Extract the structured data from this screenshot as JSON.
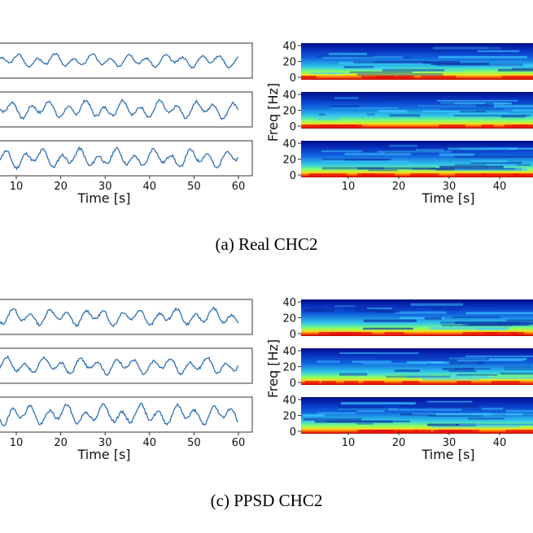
{
  "panels": [
    {
      "caption": "(a) Real CHC2",
      "time_axis": {
        "label": "Time [s]",
        "ticks": [
          "10",
          "20",
          "30",
          "40",
          "50",
          "60"
        ]
      },
      "spec_axis": {
        "xlabel": "Time [s]",
        "xticks": [
          "10",
          "20",
          "30",
          "40"
        ],
        "ylabel": "Freq [Hz]",
        "yticks": [
          "0",
          "20",
          "40"
        ]
      },
      "traces": [
        {
          "amp": 0.55,
          "seed": 3
        },
        {
          "amp": 0.75,
          "seed": 7
        },
        {
          "amp": 0.8,
          "seed": 11
        }
      ],
      "spectrograms": [
        {
          "seed": 1
        },
        {
          "seed": 2
        },
        {
          "seed": 5
        }
      ]
    },
    {
      "caption": "(c) PPSD CHC2",
      "time_axis": {
        "label": "Time [s]",
        "ticks": [
          "10",
          "20",
          "30",
          "40",
          "50",
          "60"
        ]
      },
      "spec_axis": {
        "xlabel": "Time [s]",
        "xticks": [
          "10",
          "20",
          "30",
          "40"
        ],
        "ylabel": "Freq [Hz]",
        "yticks": [
          "0",
          "20",
          "40"
        ]
      },
      "traces": [
        {
          "amp": 0.7,
          "seed": 13
        },
        {
          "amp": 0.7,
          "seed": 17
        },
        {
          "amp": 0.85,
          "seed": 19
        }
      ],
      "spectrograms": [
        {
          "seed": 21
        },
        {
          "seed": 23
        },
        {
          "seed": 29
        }
      ]
    }
  ]
}
